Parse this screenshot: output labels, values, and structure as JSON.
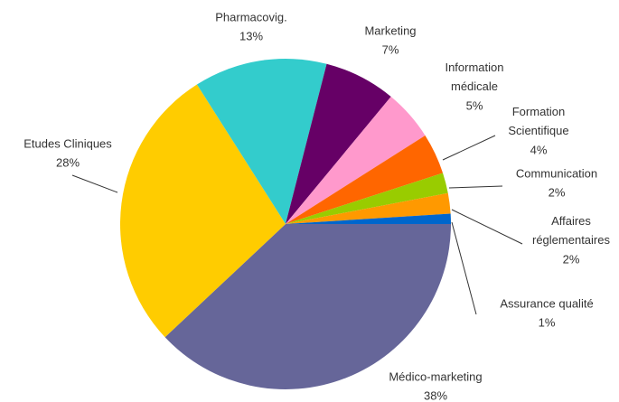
{
  "chart_data": {
    "type": "pie",
    "categories": [
      "Médico-marketing",
      "Etudes Cliniques",
      "Pharmacovig.",
      "Marketing",
      "Information médicale",
      "Formation Scientifique",
      "Communication",
      "Affaires réglementaires",
      "Assurance qualité"
    ],
    "values": [
      38,
      28,
      13,
      7,
      5,
      4,
      2,
      2,
      1
    ],
    "value_labels": [
      "38%",
      "28%",
      "13%",
      "7%",
      "5%",
      "4%",
      "2%",
      "2%",
      "1%"
    ],
    "colors": [
      "#666699",
      "#ffcc00",
      "#33cccc",
      "#660066",
      "#ff99cc",
      "#ff6600",
      "#99cc00",
      "#ff9900",
      "#0066cc"
    ]
  }
}
